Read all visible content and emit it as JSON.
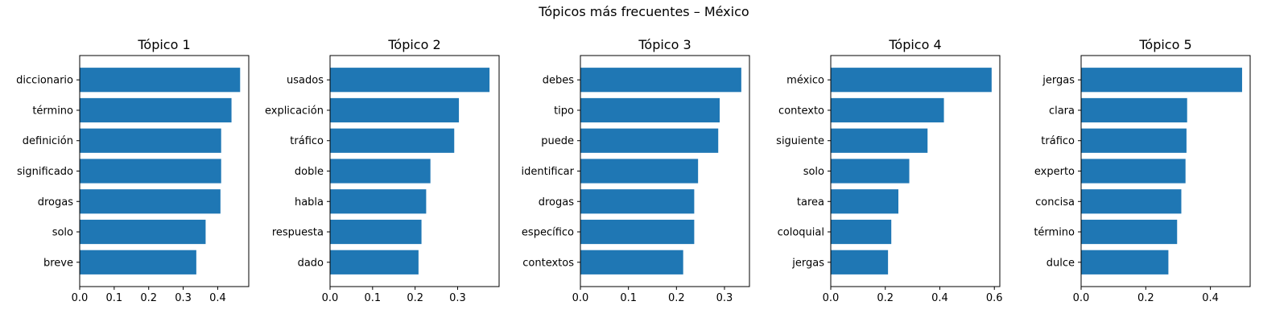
{
  "figure": {
    "title": "Tópicos más frecuentes – México"
  },
  "colors": {
    "bar": "#1f77b4",
    "axis": "#000000"
  },
  "chart_data": [
    {
      "type": "bar",
      "orientation": "horizontal",
      "title": "Tópico 1",
      "categories": [
        "diccionario",
        "término",
        "definición",
        "significado",
        "drogas",
        "solo",
        "breve"
      ],
      "values": [
        0.465,
        0.44,
        0.41,
        0.41,
        0.408,
        0.365,
        0.338
      ],
      "xlim": [
        0,
        0.49
      ],
      "xticks": [
        "0.0",
        "0.1",
        "0.2",
        "0.3",
        "0.4"
      ]
    },
    {
      "type": "bar",
      "orientation": "horizontal",
      "title": "Tópico 2",
      "categories": [
        "usados",
        "explicación",
        "tráfico",
        "doble",
        "habla",
        "respuesta",
        "dado"
      ],
      "values": [
        0.375,
        0.303,
        0.292,
        0.236,
        0.226,
        0.215,
        0.208
      ],
      "xlim": [
        0,
        0.3975
      ],
      "xticks": [
        "0.0",
        "0.1",
        "0.2",
        "0.3"
      ]
    },
    {
      "type": "bar",
      "orientation": "horizontal",
      "title": "Tópico 3",
      "categories": [
        "debes",
        "tipo",
        "puede",
        "identificar",
        "drogas",
        "específico",
        "contextos"
      ],
      "values": [
        0.335,
        0.29,
        0.287,
        0.245,
        0.237,
        0.237,
        0.214
      ],
      "xlim": [
        0,
        0.352
      ],
      "xticks": [
        "0.0",
        "0.1",
        "0.2",
        "0.3"
      ]
    },
    {
      "type": "bar",
      "orientation": "horizontal",
      "title": "Tópico 4",
      "categories": [
        "méxico",
        "contexto",
        "siguiente",
        "solo",
        "tarea",
        "coloquial",
        "jergas"
      ],
      "values": [
        0.59,
        0.415,
        0.355,
        0.288,
        0.248,
        0.222,
        0.21
      ],
      "xlim": [
        0,
        0.62
      ],
      "xticks": [
        "0.0",
        "0.2",
        "0.4",
        "0.6"
      ]
    },
    {
      "type": "bar",
      "orientation": "horizontal",
      "title": "Tópico 5",
      "categories": [
        "jergas",
        "clara",
        "tráfico",
        "experto",
        "concisa",
        "término",
        "dulce"
      ],
      "values": [
        0.498,
        0.328,
        0.326,
        0.323,
        0.31,
        0.297,
        0.27
      ],
      "xlim": [
        0,
        0.523
      ],
      "xticks": [
        "0.0",
        "0.2",
        "0.4"
      ]
    }
  ]
}
